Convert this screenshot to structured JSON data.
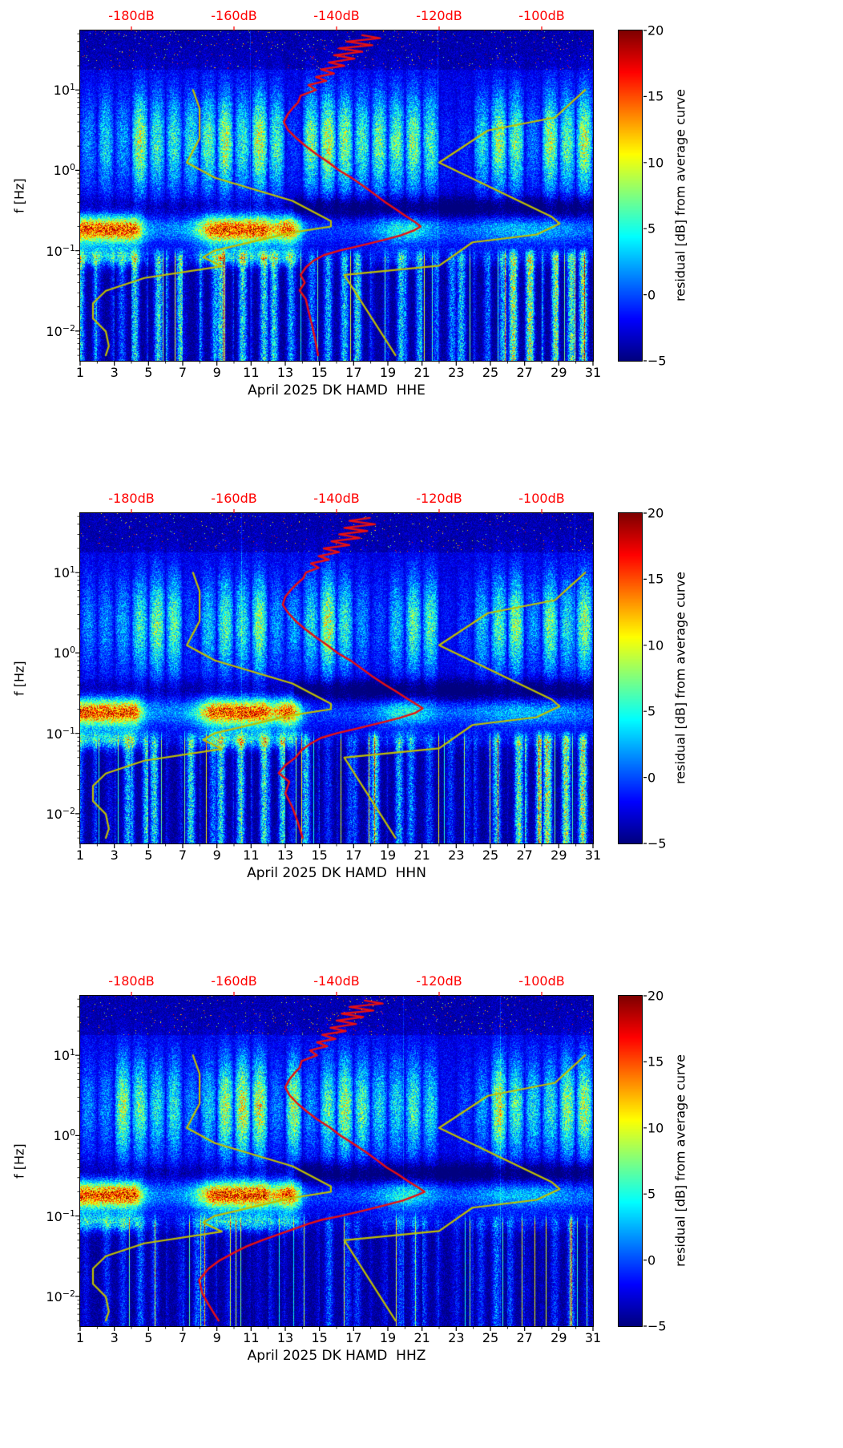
{
  "colors": {
    "red_curve": "#e81010",
    "yellow_curve": "#bfbf00",
    "top_axis_text": "#ff0000",
    "tick_text": "#000000"
  },
  "chart_data": {
    "type": "heatmap",
    "subtype": "spectrogram-with-overlay-curves",
    "x_axis": {
      "range_days": [
        1,
        31
      ],
      "tick_labels": [
        "1",
        "3",
        "5",
        "7",
        "9",
        "11",
        "13",
        "15",
        "17",
        "19",
        "21",
        "23",
        "25",
        "27",
        "29",
        "31"
      ]
    },
    "y_axis": {
      "label": "f [Hz]",
      "scale": "log",
      "range_hz": [
        0.0043,
        55
      ],
      "tick_mantissa": "10",
      "tick_exponents": [
        1,
        0,
        -1,
        -2
      ]
    },
    "top_axis": {
      "db_range": [
        -190,
        -90
      ],
      "tick_values": [
        -180,
        -160,
        -140,
        -120,
        -100
      ],
      "tick_labels": [
        "-180dB",
        "-160dB",
        "-140dB",
        "-120dB",
        "-100dB"
      ]
    },
    "colorbar": {
      "label": "residual [dB] from average curve",
      "range": [
        -5,
        20
      ],
      "colormap": "jet",
      "tick_values": [
        20,
        15,
        10,
        5,
        0,
        -5
      ],
      "tick_labels": [
        "20",
        "15",
        "10",
        "5",
        "0",
        "−5"
      ]
    },
    "panels": [
      {
        "channel": "HHE",
        "xlabel": "April 2025 DK HAMD  HHE",
        "red_curve_f_db": [
          [
            48,
            -135
          ],
          [
            44,
            -131.5
          ],
          [
            40,
            -138
          ],
          [
            36,
            -133
          ],
          [
            33,
            -139.5
          ],
          [
            30,
            -135
          ],
          [
            27,
            -140.5
          ],
          [
            24.5,
            -136.5
          ],
          [
            22,
            -141.5
          ],
          [
            20,
            -138.5
          ],
          [
            18,
            -143
          ],
          [
            16,
            -140.5
          ],
          [
            14.5,
            -144
          ],
          [
            13,
            -142
          ],
          [
            11.5,
            -145.5
          ],
          [
            10,
            -144
          ],
          [
            8.5,
            -147
          ],
          [
            7,
            -147.5
          ],
          [
            6,
            -148.5
          ],
          [
            5,
            -149.5
          ],
          [
            4,
            -150.3
          ],
          [
            3.2,
            -149.5
          ],
          [
            2.5,
            -147.8
          ],
          [
            2,
            -146
          ],
          [
            1.6,
            -144
          ],
          [
            1.25,
            -141.5
          ],
          [
            1,
            -139.5
          ],
          [
            0.8,
            -137
          ],
          [
            0.62,
            -134.5
          ],
          [
            0.5,
            -132.5
          ],
          [
            0.4,
            -130.5
          ],
          [
            0.33,
            -128.5
          ],
          [
            0.27,
            -126.5
          ],
          [
            0.23,
            -124.8
          ],
          [
            0.2,
            -123.6
          ],
          [
            0.18,
            -124.8
          ],
          [
            0.155,
            -127.5
          ],
          [
            0.135,
            -131
          ],
          [
            0.115,
            -135.5
          ],
          [
            0.1,
            -139.5
          ],
          [
            0.088,
            -142.5
          ],
          [
            0.075,
            -144.5
          ],
          [
            0.062,
            -146
          ],
          [
            0.05,
            -147
          ],
          [
            0.04,
            -146.2
          ],
          [
            0.032,
            -147.2
          ],
          [
            0.025,
            -146
          ],
          [
            0.018,
            -145.5
          ],
          [
            0.012,
            -144.8
          ],
          [
            0.008,
            -144.2
          ],
          [
            0.005,
            -143.6
          ]
        ]
      },
      {
        "channel": "HHN",
        "xlabel": "April 2025 DK HAMD  HHN",
        "red_curve_f_db": [
          [
            48,
            -133.5
          ],
          [
            44,
            -137.5
          ],
          [
            40,
            -132.5
          ],
          [
            36,
            -138.5
          ],
          [
            33,
            -134
          ],
          [
            30,
            -139.5
          ],
          [
            27,
            -135.5
          ],
          [
            24.5,
            -141
          ],
          [
            22,
            -137.5
          ],
          [
            20,
            -142.5
          ],
          [
            18,
            -139.5
          ],
          [
            16,
            -143.5
          ],
          [
            14.5,
            -141.5
          ],
          [
            13,
            -145
          ],
          [
            11.5,
            -143.5
          ],
          [
            10,
            -146
          ],
          [
            8.5,
            -146.5
          ],
          [
            7,
            -148
          ],
          [
            6,
            -149
          ],
          [
            5,
            -150
          ],
          [
            4,
            -150.5
          ],
          [
            3.2,
            -149.5
          ],
          [
            2.5,
            -148
          ],
          [
            2,
            -146.2
          ],
          [
            1.6,
            -144.2
          ],
          [
            1.25,
            -141.8
          ],
          [
            1,
            -139.8
          ],
          [
            0.8,
            -137.2
          ],
          [
            0.62,
            -134.8
          ],
          [
            0.5,
            -132.8
          ],
          [
            0.4,
            -130.5
          ],
          [
            0.33,
            -128.3
          ],
          [
            0.27,
            -126.2
          ],
          [
            0.23,
            -124.4
          ],
          [
            0.205,
            -123.2
          ],
          [
            0.18,
            -124.6
          ],
          [
            0.155,
            -127.8
          ],
          [
            0.135,
            -131.5
          ],
          [
            0.115,
            -136
          ],
          [
            0.1,
            -140
          ],
          [
            0.088,
            -143
          ],
          [
            0.075,
            -145
          ],
          [
            0.062,
            -146.8
          ],
          [
            0.05,
            -148
          ],
          [
            0.04,
            -150
          ],
          [
            0.032,
            -151.3
          ],
          [
            0.025,
            -149.2
          ],
          [
            0.018,
            -150
          ],
          [
            0.012,
            -148.6
          ],
          [
            0.008,
            -147.6
          ],
          [
            0.005,
            -146.6
          ]
        ]
      },
      {
        "channel": "HHZ",
        "xlabel": "April 2025 DK HAMD  HHZ",
        "red_curve_f_db": [
          [
            48,
            -134.5
          ],
          [
            44,
            -131
          ],
          [
            40,
            -137.5
          ],
          [
            36,
            -132.8
          ],
          [
            33,
            -139
          ],
          [
            30,
            -134.8
          ],
          [
            27,
            -140
          ],
          [
            24.5,
            -136.2
          ],
          [
            22,
            -141.2
          ],
          [
            20,
            -138.2
          ],
          [
            18,
            -142.8
          ],
          [
            16,
            -140.2
          ],
          [
            14.5,
            -143.8
          ],
          [
            13,
            -141.8
          ],
          [
            11.5,
            -145.2
          ],
          [
            10,
            -143.8
          ],
          [
            8.5,
            -146.8
          ],
          [
            7,
            -147.2
          ],
          [
            6,
            -148.2
          ],
          [
            5,
            -149.2
          ],
          [
            4,
            -150
          ],
          [
            3.2,
            -149.2
          ],
          [
            2.5,
            -147.6
          ],
          [
            2,
            -145.8
          ],
          [
            1.6,
            -143.8
          ],
          [
            1.25,
            -141.2
          ],
          [
            1,
            -139.2
          ],
          [
            0.8,
            -136.8
          ],
          [
            0.62,
            -134.2
          ],
          [
            0.5,
            -132.2
          ],
          [
            0.4,
            -130.2
          ],
          [
            0.33,
            -128
          ],
          [
            0.27,
            -126
          ],
          [
            0.23,
            -124.2
          ],
          [
            0.2,
            -122.8
          ],
          [
            0.18,
            -124.5
          ],
          [
            0.155,
            -127.2
          ],
          [
            0.135,
            -130.8
          ],
          [
            0.115,
            -135.2
          ],
          [
            0.1,
            -139.2
          ],
          [
            0.09,
            -142.8
          ],
          [
            0.08,
            -145.5
          ],
          [
            0.07,
            -148
          ],
          [
            0.06,
            -151
          ],
          [
            0.05,
            -154.5
          ],
          [
            0.042,
            -157.5
          ],
          [
            0.035,
            -160
          ],
          [
            0.028,
            -162.8
          ],
          [
            0.022,
            -165
          ],
          [
            0.016,
            -166.8
          ],
          [
            0.011,
            -166.2
          ],
          [
            0.008,
            -165
          ],
          [
            0.006,
            -163.8
          ],
          [
            0.005,
            -163
          ]
        ]
      }
    ],
    "yellow_curves": {
      "low_noise_model_f_db": [
        [
          10,
          -168.0
        ],
        [
          5.88,
          -166.7
        ],
        [
          2.5,
          -166.7
        ],
        [
          1.25,
          -169.2
        ],
        [
          0.806,
          -163.7
        ],
        [
          0.417,
          -148.6
        ],
        [
          0.233,
          -141.1
        ],
        [
          0.2,
          -141.1
        ],
        [
          0.167,
          -149.0
        ],
        [
          0.1,
          -163.8
        ],
        [
          0.083,
          -166.0
        ],
        [
          0.064,
          -162.4
        ],
        [
          0.0457,
          -177.5
        ],
        [
          0.0316,
          -185.0
        ],
        [
          0.0222,
          -187.5
        ],
        [
          0.0143,
          -187.5
        ],
        [
          0.0099,
          -185.0
        ],
        [
          0.0065,
          -184.4
        ],
        [
          0.005,
          -185.0
        ]
      ],
      "high_noise_model_f_db": [
        [
          10,
          -91.5
        ],
        [
          4.55,
          -97.4
        ],
        [
          3.13,
          -110.5
        ],
        [
          1.25,
          -120.0
        ],
        [
          0.263,
          -98.0
        ],
        [
          0.217,
          -96.5
        ],
        [
          0.159,
          -101.0
        ],
        [
          0.127,
          -113.5
        ],
        [
          0.065,
          -120.0
        ],
        [
          0.05,
          -138.5
        ],
        [
          0.005,
          -128.5
        ]
      ]
    },
    "heatmap_note": "values are residual dB from average curve, range -5 to 20, jet colormap; texture regenerated procedurally"
  }
}
